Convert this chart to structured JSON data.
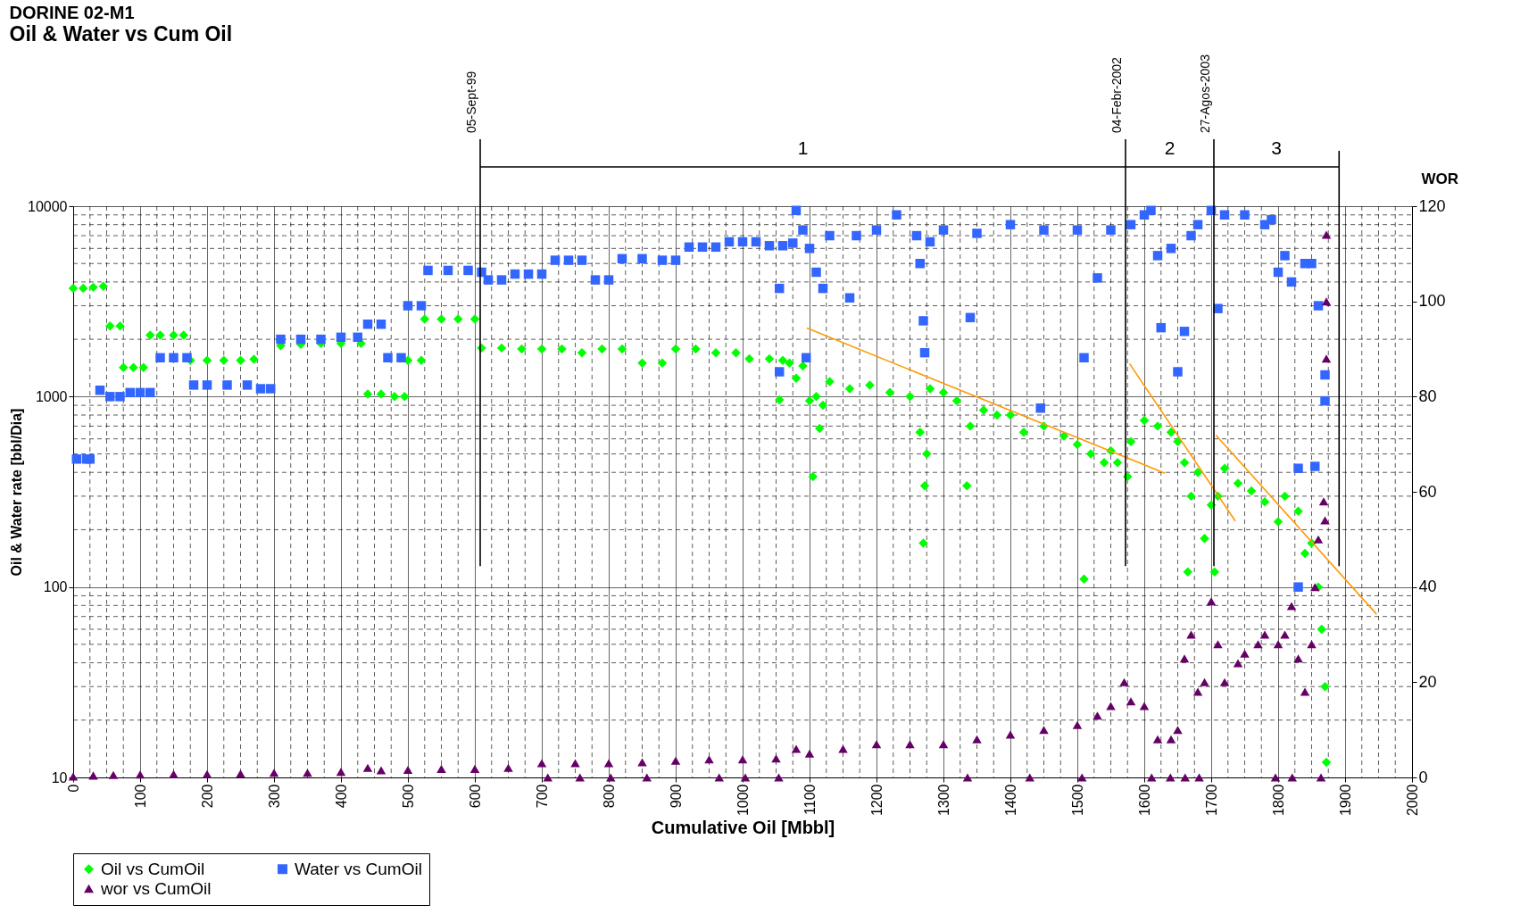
{
  "chart_data": {
    "type": "scatter",
    "title": "DORINE 02-M1",
    "subtitle": "Oil & Water vs Cum Oil",
    "xlabel": "Cumulative Oil [Mbbl]",
    "ylabel": "Oil & Water rate [bbl/Dia]",
    "y2label": "WOR",
    "xlim": [
      0,
      2000
    ],
    "xticks": [
      0,
      100,
      200,
      300,
      400,
      500,
      600,
      700,
      800,
      900,
      1000,
      1100,
      1200,
      1300,
      1400,
      1500,
      1600,
      1700,
      1800,
      1900,
      2000
    ],
    "ylim": [
      10,
      10000
    ],
    "yticks": [
      10,
      100,
      1000,
      10000
    ],
    "y2lim": [
      0,
      120
    ],
    "y2ticks": [
      0,
      20,
      40,
      60,
      80,
      100,
      120
    ],
    "log": "y",
    "grid": true,
    "legend": "bottom",
    "series": [
      {
        "name": "Oil vs CumOil",
        "color": "#00ff00",
        "marker": "diamond",
        "x": [
          0,
          15,
          30,
          45,
          55,
          70,
          75,
          90,
          105,
          115,
          130,
          150,
          165,
          175,
          200,
          225,
          250,
          270,
          310,
          340,
          370,
          400,
          430,
          440,
          460,
          480,
          495,
          500,
          520,
          525,
          550,
          575,
          600,
          610,
          640,
          670,
          700,
          730,
          760,
          790,
          820,
          850,
          880,
          900,
          930,
          960,
          990,
          1010,
          1040,
          1055,
          1060,
          1070,
          1080,
          1090,
          1100,
          1105,
          1110,
          1115,
          1120,
          1130,
          1160,
          1190,
          1220,
          1250,
          1265,
          1270,
          1272,
          1275,
          1280,
          1300,
          1320,
          1335,
          1340,
          1360,
          1380,
          1400,
          1420,
          1450,
          1480,
          1500,
          1510,
          1520,
          1540,
          1550,
          1560,
          1575,
          1580,
          1600,
          1620,
          1640,
          1650,
          1660,
          1665,
          1670,
          1680,
          1690,
          1700,
          1705,
          1710,
          1720,
          1740,
          1760,
          1780,
          1800,
          1810,
          1830,
          1840,
          1850,
          1860,
          1865,
          1870,
          1872
        ],
        "values": [
          3700,
          3700,
          3750,
          3800,
          2350,
          2350,
          1420,
          1420,
          1420,
          2100,
          2100,
          2100,
          2100,
          1550,
          1550,
          1550,
          1550,
          1570,
          1850,
          1880,
          1900,
          1900,
          1900,
          1030,
          1030,
          1000,
          1000,
          1550,
          1550,
          2550,
          2550,
          2550,
          2550,
          1800,
          1800,
          1780,
          1780,
          1780,
          1700,
          1780,
          1780,
          1500,
          1500,
          1780,
          1780,
          1700,
          1700,
          1580,
          1580,
          960,
          1550,
          1500,
          1250,
          1450,
          950,
          380,
          1000,
          680,
          900,
          1200,
          1100,
          1150,
          1050,
          1000,
          650,
          170,
          340,
          500,
          1100,
          1050,
          950,
          340,
          700,
          850,
          800,
          800,
          650,
          700,
          620,
          560,
          110,
          500,
          450,
          520,
          450,
          380,
          580,
          750,
          700,
          650,
          580,
          450,
          120,
          300,
          400,
          180,
          270,
          120,
          300,
          420,
          350,
          320,
          280,
          220,
          300,
          250,
          150,
          170,
          100,
          60,
          30,
          12
        ]
      },
      {
        "name": "Water vs CumOil",
        "color": "#3366ff",
        "marker": "square",
        "x": [
          5,
          20,
          25,
          40,
          55,
          70,
          85,
          100,
          115,
          130,
          150,
          170,
          180,
          200,
          230,
          260,
          280,
          295,
          310,
          340,
          370,
          400,
          425,
          440,
          460,
          470,
          490,
          500,
          520,
          530,
          560,
          590,
          610,
          620,
          640,
          660,
          680,
          700,
          720,
          740,
          760,
          780,
          800,
          820,
          850,
          880,
          900,
          920,
          940,
          960,
          980,
          1000,
          1020,
          1040,
          1055,
          1055,
          1060,
          1075,
          1080,
          1090,
          1095,
          1100,
          1110,
          1120,
          1130,
          1160,
          1170,
          1200,
          1230,
          1260,
          1265,
          1270,
          1272,
          1280,
          1300,
          1340,
          1350,
          1400,
          1445,
          1450,
          1500,
          1510,
          1530,
          1550,
          1580,
          1600,
          1610,
          1620,
          1625,
          1640,
          1650,
          1660,
          1670,
          1680,
          1700,
          1710,
          1720,
          1750,
          1780,
          1790,
          1800,
          1810,
          1820,
          1830,
          1830,
          1840,
          1850,
          1855,
          1860,
          1870,
          1870
        ],
        "values": [
          470,
          470,
          470,
          1080,
          1000,
          1000,
          1050,
          1050,
          1050,
          1600,
          1600,
          1600,
          1150,
          1150,
          1150,
          1150,
          1100,
          1100,
          2000,
          2000,
          2000,
          2050,
          2050,
          2400,
          2400,
          1600,
          1600,
          3000,
          3000,
          4600,
          4600,
          4600,
          4500,
          4100,
          4100,
          4400,
          4400,
          4400,
          5200,
          5200,
          5200,
          4100,
          4100,
          5300,
          5300,
          5200,
          5200,
          6100,
          6100,
          6100,
          6500,
          6500,
          6500,
          6200,
          3700,
          1350,
          6200,
          6400,
          9500,
          7500,
          1600,
          6000,
          4500,
          3700,
          7000,
          3300,
          7000,
          7500,
          9000,
          7000,
          5000,
          2500,
          1700,
          6500,
          7500,
          2600,
          7200,
          8000,
          870,
          7500,
          7500,
          1600,
          4200,
          7500,
          8000,
          9000,
          9500,
          5500,
          2300,
          6000,
          1350,
          2200,
          7000,
          8000,
          9500,
          2900,
          9000,
          9000,
          8000,
          8500,
          4500,
          5500,
          4000,
          100,
          420,
          5000,
          5000,
          430,
          3000,
          1300,
          950
        ]
      },
      {
        "name": "wor vs CumOil",
        "color": "#660066",
        "marker": "triangle",
        "axis": "y2",
        "x": [
          0,
          30,
          60,
          100,
          150,
          200,
          250,
          300,
          350,
          400,
          440,
          460,
          500,
          550,
          600,
          650,
          700,
          709,
          750,
          757,
          800,
          803,
          850,
          857,
          900,
          950,
          965,
          1000,
          1004,
          1050,
          1054,
          1080,
          1100,
          1150,
          1200,
          1250,
          1300,
          1336,
          1350,
          1400,
          1429,
          1450,
          1500,
          1507,
          1530,
          1550,
          1570,
          1580,
          1600,
          1611,
          1620,
          1639,
          1640,
          1650,
          1660,
          1661,
          1670,
          1680,
          1682,
          1690,
          1700,
          1710,
          1720,
          1740,
          1750,
          1770,
          1780,
          1796,
          1800,
          1810,
          1820,
          1821,
          1830,
          1840,
          1850,
          1855,
          1860,
          1864,
          1868,
          1870,
          1872,
          1872,
          1872
        ],
        "values": [
          0.2,
          0.4,
          0.5,
          0.6,
          0.7,
          0.7,
          0.8,
          1,
          1,
          1.2,
          2,
          1.5,
          1.6,
          1.8,
          1.8,
          2,
          3,
          0,
          3,
          0,
          3,
          0,
          3.2,
          0,
          3.5,
          3.8,
          0,
          3.8,
          0,
          4,
          0,
          6,
          5,
          6,
          7,
          7,
          7,
          0,
          8,
          9,
          0,
          10,
          11,
          0,
          13,
          15,
          20,
          16,
          15,
          0,
          8,
          0,
          8,
          10,
          25,
          0,
          30,
          18,
          0,
          20,
          37,
          28,
          20,
          24,
          26,
          28,
          30,
          0,
          28,
          30,
          36,
          0,
          25,
          18,
          28,
          40,
          50,
          0,
          58,
          54,
          114,
          100,
          88
        ]
      },
      {
        "type": "line",
        "color": "#ff9900",
        "marker": "none",
        "line_style": "solid",
        "x": [
          1096,
          1631
        ],
        "values": [
          2290,
          396
        ]
      },
      {
        "type": "line",
        "color": "#ff9900",
        "marker": "none",
        "line_style": "solid",
        "x": [
          1578,
          1736
        ],
        "values": [
          1490,
          222
        ]
      },
      {
        "type": "line",
        "color": "#ff9900",
        "marker": "none",
        "line_style": "solid",
        "x": [
          1707,
          1947
        ],
        "values": [
          628,
          72
        ]
      }
    ],
    "ref_lines": [
      {
        "axis": "x",
        "value": 608,
        "label": "05-Sept-99"
      },
      {
        "axis": "x",
        "value": 1572,
        "label": "04-Febr-2002"
      },
      {
        "axis": "x",
        "value": 1704,
        "label": "27-Agos-2003"
      },
      {
        "axis": "x",
        "value": 1891
      }
    ],
    "annotations": [
      "1",
      "2",
      "3"
    ]
  }
}
